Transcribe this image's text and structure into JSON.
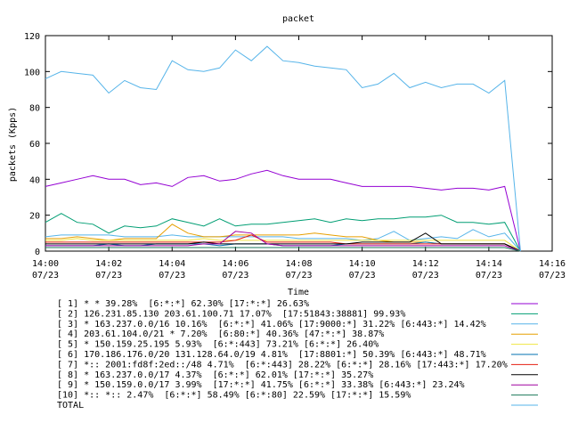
{
  "chart_data": {
    "type": "line",
    "title": "packet",
    "xlabel": "Time",
    "ylabel": "packets (Kpps)",
    "ylim": [
      0,
      120
    ],
    "yticks": [
      0,
      20,
      40,
      60,
      80,
      100,
      120
    ],
    "xlim_minutes": [
      0,
      16
    ],
    "xticks": [
      {
        "time": "14:00",
        "date": "07/23"
      },
      {
        "time": "14:02",
        "date": "07/23"
      },
      {
        "time": "14:04",
        "date": "07/23"
      },
      {
        "time": "14:06",
        "date": "07/23"
      },
      {
        "time": "14:08",
        "date": "07/23"
      },
      {
        "time": "14:10",
        "date": "07/23"
      },
      {
        "time": "14:12",
        "date": "07/23"
      },
      {
        "time": "14:14",
        "date": "07/23"
      },
      {
        "time": "14:16",
        "date": "07/23"
      }
    ],
    "grid": false,
    "legend_position": "bottom",
    "x_minutes": [
      0,
      0.5,
      1,
      1.5,
      2,
      2.5,
      3,
      3.5,
      4,
      4.5,
      5,
      5.5,
      6,
      6.5,
      7,
      7.5,
      8,
      8.5,
      9,
      9.5,
      10,
      10.5,
      11,
      11.5,
      12,
      12.5,
      13,
      13.5,
      14,
      14.5,
      15
    ],
    "series": [
      {
        "name": "[ 1] * * 39.28%  [6:*:*] 62.30% [17:*:*] 26.63%",
        "color": "#9400d3",
        "values": [
          36,
          38,
          40,
          42,
          40,
          40,
          37,
          38,
          36,
          41,
          42,
          39,
          40,
          43,
          45,
          42,
          40,
          40,
          40,
          38,
          36,
          36,
          36,
          36,
          35,
          34,
          35,
          35,
          34,
          36,
          0
        ]
      },
      {
        "name": "[ 2] 126.231.85.130 203.61.100.71 17.07%  [17:51843:38881] 99.93%",
        "color": "#009e73",
        "values": [
          16,
          21,
          16,
          15,
          10,
          14,
          13,
          14,
          18,
          16,
          14,
          18,
          14,
          15,
          15,
          16,
          17,
          18,
          16,
          18,
          17,
          18,
          18,
          19,
          19,
          20,
          16,
          16,
          15,
          16,
          0
        ]
      },
      {
        "name": "[ 3] * 163.237.0.0/16 10.16%  [6:*:*] 41.06% [17:9000:*] 31.22% [6:443:*] 14.42%",
        "color": "#56b4e9",
        "values": [
          8,
          9,
          9,
          9,
          9,
          8,
          8,
          8,
          9,
          8,
          8,
          8,
          8,
          8,
          8,
          8,
          7,
          7,
          7,
          7,
          6,
          7,
          11,
          6,
          7,
          8,
          7,
          12,
          8,
          10,
          0
        ]
      },
      {
        "name": "[ 4] 203.61.104.0/21 * 7.20%  [6:80:*] 40.36% [47:*:*] 38.87%",
        "color": "#e69f00",
        "values": [
          7,
          7,
          8,
          7,
          6,
          7,
          7,
          7,
          15,
          10,
          8,
          8,
          9,
          9,
          9,
          9,
          9,
          10,
          9,
          8,
          8,
          6,
          5,
          5,
          5,
          4,
          4,
          4,
          4,
          4,
          0
        ]
      },
      {
        "name": "[ 5] * 150.159.25.195 5.93%  [6:*:443] 73.21% [6:*:*] 26.40%",
        "color": "#f0e442",
        "values": [
          6,
          6,
          7,
          6,
          6,
          6,
          6,
          6,
          6,
          6,
          7,
          6,
          6,
          6,
          6,
          6,
          6,
          6,
          6,
          6,
          6,
          6,
          6,
          6,
          6,
          6,
          6,
          6,
          6,
          6,
          0
        ]
      },
      {
        "name": "[ 6] 170.186.176.0/20 131.128.64.0/19 4.81%  [17:8801:*] 50.39% [6:443:*] 48.71%",
        "color": "#0072b2",
        "values": [
          3,
          3,
          3,
          3,
          4,
          3,
          3,
          4,
          4,
          4,
          4,
          3,
          4,
          4,
          4,
          3,
          3,
          3,
          3,
          4,
          4,
          4,
          4,
          4,
          5,
          4,
          4,
          4,
          4,
          4,
          0
        ]
      },
      {
        "name": "[ 7] *:: 2001:fd8f:2ed::/48 4.71%  [6:*:443] 28.22% [6:*:*] 28.16% [17:443:*] 17.20%",
        "color": "#e51e10",
        "values": [
          5,
          5,
          5,
          5,
          5,
          5,
          5,
          5,
          5,
          5,
          5,
          5,
          6,
          9,
          5,
          5,
          5,
          5,
          5,
          4,
          4,
          4,
          4,
          4,
          4,
          4,
          4,
          4,
          4,
          4,
          0
        ]
      },
      {
        "name": "[ 8] * 163.237.0.0/17 4.37%  [6:*:*] 62.01% [17:*:*] 35.27%",
        "color": "#000000",
        "values": [
          4,
          4,
          4,
          4,
          4,
          4,
          4,
          4,
          4,
          4,
          5,
          4,
          4,
          4,
          4,
          4,
          4,
          4,
          4,
          4,
          5,
          5,
          5,
          5,
          10,
          4,
          4,
          4,
          4,
          4,
          0
        ]
      },
      {
        "name": "[ 9] * 150.159.0.0/17 3.99%  [17:*:*] 41.75% [6:*:*] 33.38% [6:443:*] 23.24%",
        "color": "#a000a0",
        "values": [
          3,
          3,
          3,
          3,
          3,
          3,
          3,
          3,
          3,
          3,
          4,
          4,
          11,
          10,
          4,
          3,
          3,
          3,
          3,
          3,
          3,
          3,
          3,
          3,
          3,
          3,
          3,
          3,
          3,
          3,
          0
        ]
      },
      {
        "name": "[10] *:: *:: 2.47%  [6:*:*] 58.49% [6:*:80] 22.59% [17:*:*] 15.59%",
        "color": "#1b7a5a",
        "values": [
          2,
          2,
          2,
          2,
          2,
          2,
          2,
          2,
          2,
          2,
          2,
          2,
          2,
          2,
          2,
          2,
          2,
          2,
          2,
          2,
          2,
          2,
          2,
          2,
          2,
          2,
          2,
          2,
          2,
          2,
          0
        ]
      },
      {
        "name": "TOTAL",
        "color": "#56b4e9",
        "values": [
          96,
          100,
          99,
          98,
          88,
          95,
          91,
          90,
          106,
          101,
          100,
          102,
          112,
          106,
          114,
          106,
          105,
          103,
          102,
          101,
          91,
          93,
          99,
          91,
          94,
          91,
          93,
          93,
          88,
          95,
          0
        ]
      }
    ]
  }
}
